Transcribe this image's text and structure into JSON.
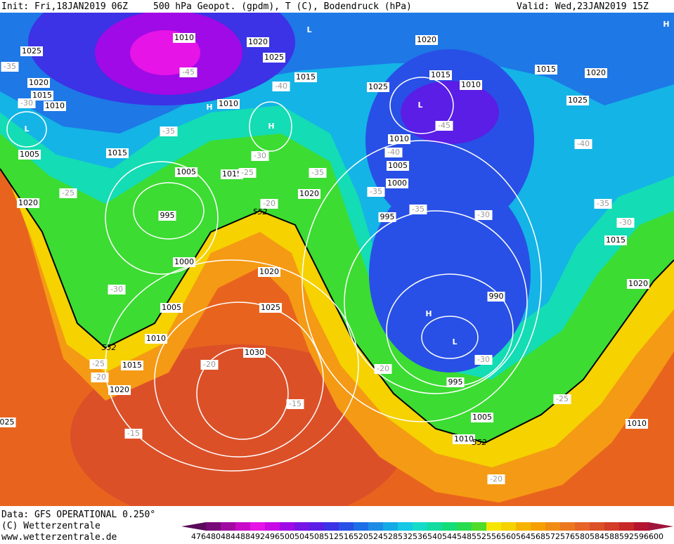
{
  "header": {
    "init": "Init: Fri,18JAN2019 06Z",
    "title": "500 hPa Geopot. (gpdm), T (C), Bodendruck (hPa)",
    "valid": "Valid: Wed,23JAN2019 15Z"
  },
  "footer": [
    "Data: GFS OPERATIONAL 0.250°",
    "(C) Wetterzentrale",
    "www.wetterzentrale.de"
  ],
  "colorbar": {
    "labels": [
      "476",
      "480",
      "484",
      "488",
      "492",
      "496",
      "500",
      "504",
      "508",
      "512",
      "516",
      "520",
      "524",
      "528",
      "532",
      "536",
      "540",
      "544",
      "548",
      "552",
      "556",
      "560",
      "564",
      "568",
      "572",
      "576",
      "580",
      "584",
      "588",
      "592",
      "596",
      "600"
    ],
    "colors": [
      "#5a0a5a",
      "#780a78",
      "#a00aa0",
      "#c80ac8",
      "#e614e6",
      "#c80ae6",
      "#a00ae6",
      "#7814e6",
      "#5a1ee6",
      "#3c32e6",
      "#2850e6",
      "#1e6ee6",
      "#1e8ce6",
      "#14aae6",
      "#14c8e6",
      "#14dcc8",
      "#14dca0",
      "#14dc78",
      "#28dc50",
      "#50dc28",
      "#f5e600",
      "#f5d200",
      "#f5b400",
      "#f5a000",
      "#f08c14",
      "#eb781e",
      "#e66428",
      "#dc5028",
      "#d23c28",
      "#c82828",
      "#b41432",
      "#a0143c"
    ]
  },
  "pressure_labels": [
    "1025",
    "1020",
    "1015",
    "1010",
    "1010",
    "1020",
    "1025",
    "1015",
    "1010",
    "1005",
    "1015",
    "1005",
    "1015",
    "1020",
    "1020",
    "995",
    "1000",
    "1005",
    "1010",
    "1015",
    "1020",
    "1020",
    "1025",
    "1030",
    "1020",
    "1015",
    "1010",
    "1025",
    "1015",
    "1020",
    "1025",
    "1010",
    "1005",
    "1000",
    "995",
    "990",
    "995",
    "1005",
    "1010",
    "1015",
    "1020",
    "1010",
    "025"
  ],
  "temperature_labels": [
    "-35",
    "-30",
    "-45",
    "-40",
    "-35",
    "-30",
    "-25",
    "-35",
    "-25",
    "-20",
    "-30",
    "-25",
    "-20",
    "-20",
    "-15",
    "-15",
    "-45",
    "-40",
    "-35",
    "-35",
    "-30",
    "-40",
    "-35",
    "-30",
    "-20",
    "-30",
    "-25",
    "-20"
  ],
  "geopotential_labels": [
    "552",
    "552",
    "552"
  ],
  "centers": [
    "H",
    "L",
    "H",
    "H",
    "L",
    "L",
    "H",
    "L"
  ]
}
